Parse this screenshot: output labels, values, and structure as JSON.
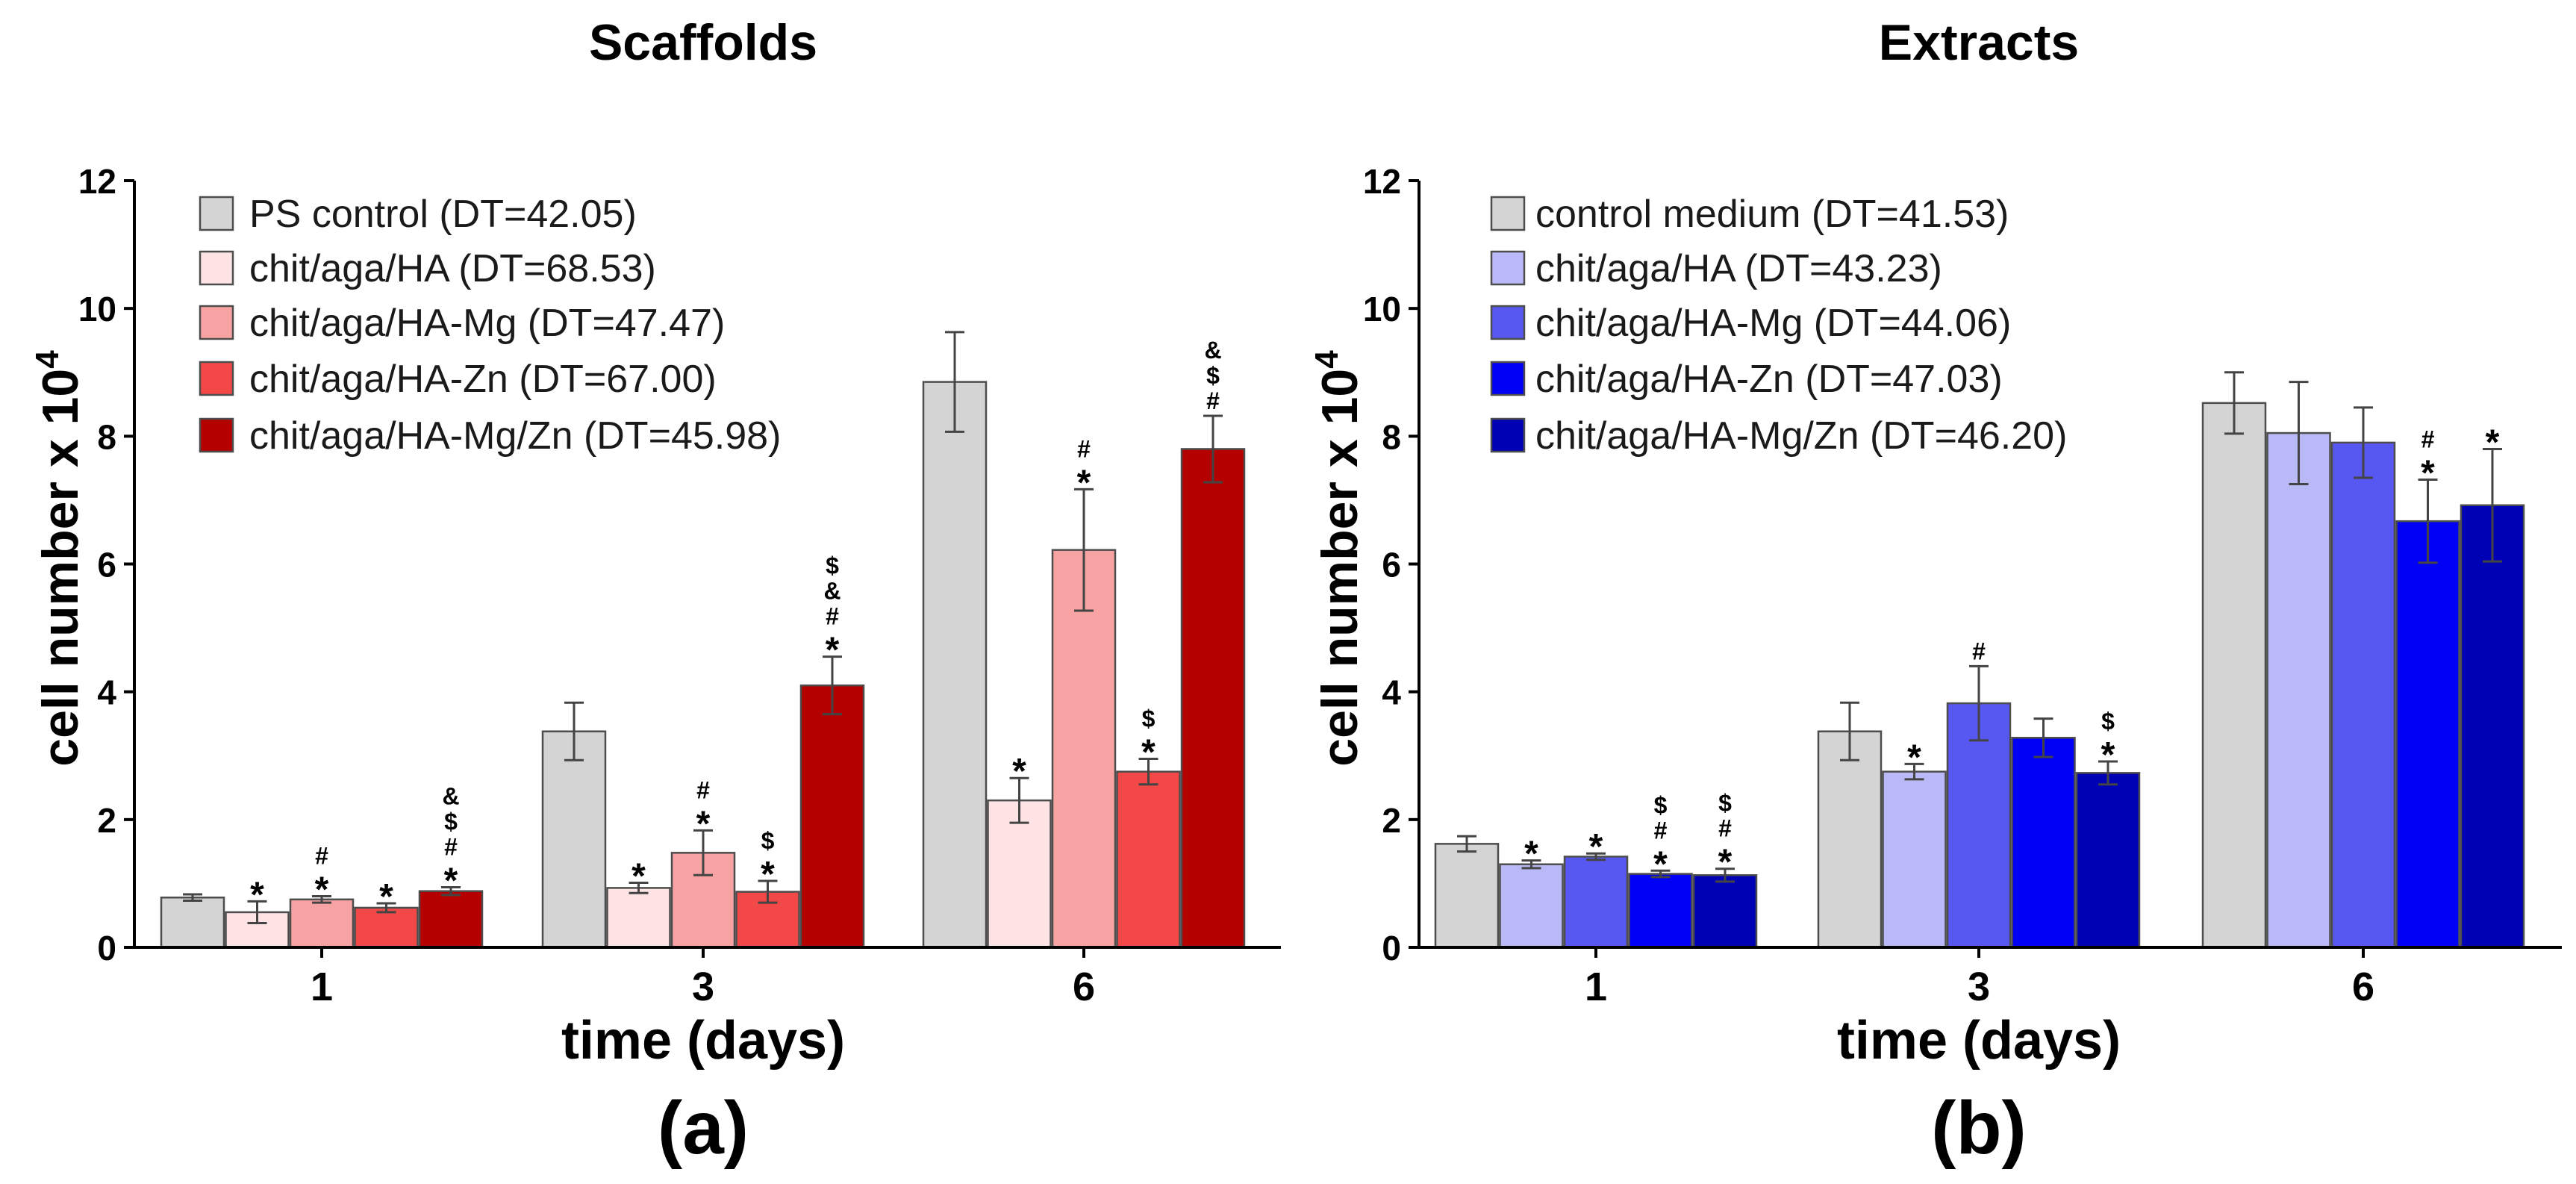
{
  "chart_data": [
    {
      "type": "bar",
      "panel_label": "(a)",
      "title": "Scaffolds",
      "xlabel": "time (days)",
      "ylabel": "cell number x 10",
      "ylabel_superscript": "4",
      "categories": [
        "1",
        "3",
        "6"
      ],
      "ylim": [
        0,
        12
      ],
      "yticks": [
        0,
        2,
        4,
        6,
        8,
        10,
        12
      ],
      "grid": false,
      "legend": "top-left",
      "series": [
        {
          "name": "PS control (DT=42.05)",
          "color": "#d4d4d4",
          "values": [
            0.78,
            3.38,
            8.85
          ],
          "errors": [
            0.05,
            0.45,
            0.78
          ],
          "annotations": [
            [],
            [],
            []
          ]
        },
        {
          "name": "chit/aga/HA (DT=68.53)",
          "color": "#fde3e3",
          "values": [
            0.55,
            0.93,
            2.3
          ],
          "errors": [
            0.17,
            0.08,
            0.35
          ],
          "annotations": [
            [
              "*"
            ],
            [
              "*"
            ],
            [
              "*"
            ]
          ]
        },
        {
          "name": "chit/aga/HA-Mg (DT=47.47)",
          "color": "#f8a3a3",
          "values": [
            0.75,
            1.48,
            6.22
          ],
          "errors": [
            0.05,
            0.35,
            0.95
          ],
          "annotations": [
            [
              "#",
              "*"
            ],
            [
              "#",
              "*"
            ],
            [
              "#",
              "*"
            ]
          ]
        },
        {
          "name": "chit/aga/HA-Zn (DT=67.00)",
          "color": "#f24848",
          "values": [
            0.62,
            0.87,
            2.75
          ],
          "errors": [
            0.07,
            0.17,
            0.2
          ],
          "annotations": [
            [
              "*"
            ],
            [
              "$",
              "*"
            ],
            [
              "$",
              "*"
            ]
          ]
        },
        {
          "name": "chit/aga/HA-Mg/Zn (DT=45.98)",
          "color": "#b50000",
          "values": [
            0.88,
            4.1,
            7.8
          ],
          "errors": [
            0.06,
            0.45,
            0.52
          ],
          "annotations": [
            [
              "&",
              "$",
              "#",
              "*"
            ],
            [
              "$",
              "&",
              "#",
              "*"
            ],
            [
              "&",
              "$",
              "#"
            ]
          ]
        }
      ]
    },
    {
      "type": "bar",
      "panel_label": "(b)",
      "title": "Extracts",
      "xlabel": "time (days)",
      "ylabel": "cell number x 10",
      "ylabel_superscript": "4",
      "categories": [
        "1",
        "3",
        "6"
      ],
      "ylim": [
        0,
        12
      ],
      "yticks": [
        0,
        2,
        4,
        6,
        8,
        10,
        12
      ],
      "grid": false,
      "legend": "top-left",
      "series": [
        {
          "name": "control medium (DT=41.53)",
          "color": "#d4d4d4",
          "values": [
            1.62,
            3.38,
            8.52
          ],
          "errors": [
            0.12,
            0.45,
            0.48
          ],
          "annotations": [
            [],
            [],
            []
          ]
        },
        {
          "name": "chit/aga/HA (DT=43.23)",
          "color": "#b9b9f7",
          "values": [
            1.3,
            2.75,
            8.05
          ],
          "errors": [
            0.06,
            0.12,
            0.8
          ],
          "annotations": [
            [
              "*"
            ],
            [
              "*"
            ],
            []
          ]
        },
        {
          "name": "chit/aga/HA-Mg (DT=44.06)",
          "color": "#5757f2",
          "values": [
            1.42,
            3.82,
            7.9
          ],
          "errors": [
            0.05,
            0.58,
            0.55
          ],
          "annotations": [
            [
              "*"
            ],
            [
              "#"
            ],
            []
          ]
        },
        {
          "name": "chit/aga/HA-Zn (DT=47.03)",
          "color": "#0000f7",
          "values": [
            1.15,
            3.28,
            6.67
          ],
          "errors": [
            0.05,
            0.3,
            0.65
          ],
          "annotations": [
            [
              "$",
              "#",
              "*"
            ],
            [],
            [
              "#",
              "*"
            ]
          ]
        },
        {
          "name": "chit/aga/HA-Mg/Zn (DT=46.20)",
          "color": "#0000b5",
          "values": [
            1.13,
            2.73,
            6.92
          ],
          "errors": [
            0.1,
            0.18,
            0.88
          ],
          "annotations": [
            [
              "$",
              "#",
              "*"
            ],
            [
              "$",
              "*"
            ],
            [
              "*"
            ]
          ]
        }
      ]
    }
  ]
}
